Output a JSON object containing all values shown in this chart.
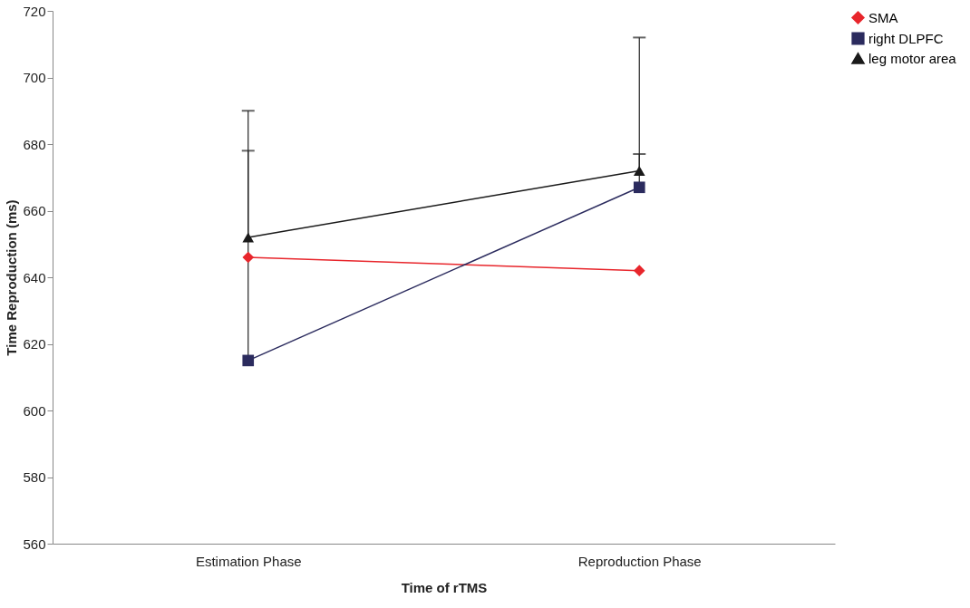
{
  "chart_data": {
    "type": "line",
    "xlabel": "Time of rTMS",
    "ylabel": "Time Reproduction (ms)",
    "categories": [
      "Estimation Phase",
      "Reproduction Phase"
    ],
    "series": [
      {
        "name": "SMA",
        "color": "#e8262c",
        "marker": "diamond",
        "values": [
          646,
          642
        ]
      },
      {
        "name": "right DLPFC",
        "color": "#2b2b5e",
        "marker": "square",
        "values": [
          615,
          667
        ],
        "errors": [
          [
            615,
            678
          ],
          [
            667,
            712
          ]
        ]
      },
      {
        "name": "leg motor area",
        "color": "#1a1a1a",
        "marker": "triangle",
        "values": [
          652,
          672
        ],
        "errors": [
          [
            652,
            690
          ],
          [
            672,
            677
          ]
        ]
      }
    ],
    "ylim": [
      560,
      720
    ],
    "yticks": [
      560,
      580,
      600,
      620,
      640,
      660,
      680,
      700,
      720
    ],
    "grid": false,
    "legend": "right",
    "line_style": "solid"
  }
}
